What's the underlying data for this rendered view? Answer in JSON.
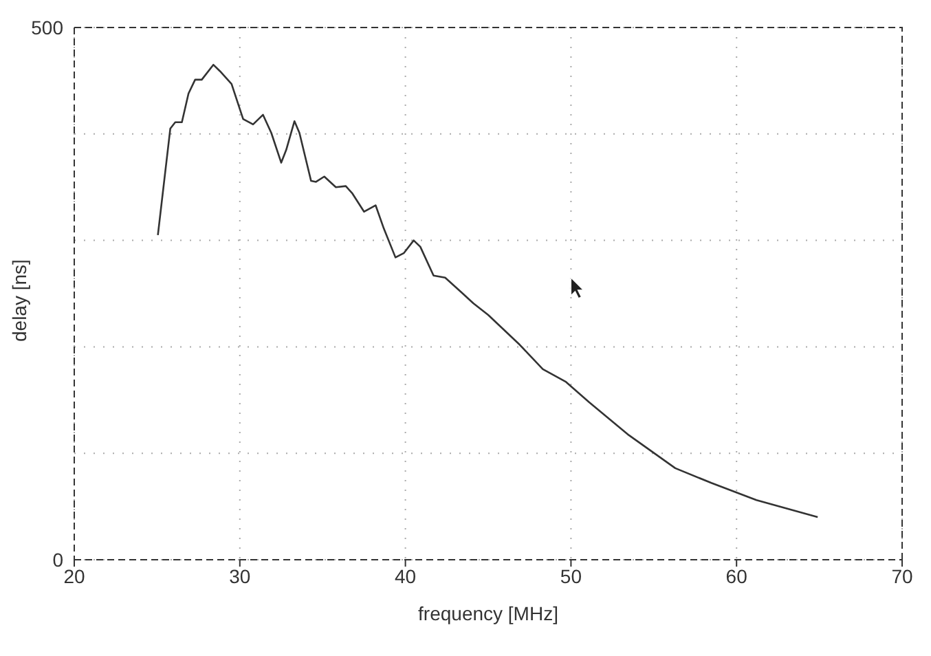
{
  "chart_data": {
    "type": "line",
    "xlabel": "frequency [MHz]",
    "ylabel": "delay [ns]",
    "xlim": [
      20,
      70
    ],
    "xticks": [
      20,
      30,
      40,
      50,
      60,
      70
    ],
    "ylim": [
      0,
      500
    ],
    "yticks": [
      0,
      {
        "value": 100,
        "label": null
      },
      {
        "value": 200,
        "label": null
      },
      {
        "value": 300,
        "label": null
      },
      {
        "value": 400,
        "label": null
      },
      500
    ],
    "grid": true,
    "marker": "none",
    "line_style": "solid",
    "series": [
      {
        "color": "#333333",
        "x": [
          25.05,
          25.8,
          26.1,
          26.5,
          26.9,
          27.3,
          27.7,
          28.4,
          28.8,
          29.5,
          30.2,
          30.8,
          31.4,
          31.9,
          32.5,
          32.8,
          33.3,
          33.6,
          34.3,
          34.6,
          35.1,
          35.8,
          36.4,
          36.8,
          37.5,
          38.2,
          38.7,
          39.4,
          39.9,
          40.5,
          40.9,
          41.7,
          42.4,
          43.4,
          44.1,
          45.0,
          46.9,
          48.3,
          49.7,
          51.1,
          53.5,
          56.3,
          58.5,
          61.2,
          64.9
        ],
        "values": [
          305,
          405,
          411,
          411,
          438,
          451,
          451,
          465,
          459,
          447,
          414,
          409,
          418,
          401,
          373,
          385,
          412,
          401,
          356,
          355,
          360,
          350,
          351,
          344,
          327,
          333,
          311,
          284,
          288,
          300,
          294,
          267,
          265,
          251,
          241,
          230,
          202,
          179,
          167,
          148,
          117,
          86,
          72,
          56,
          40
        ]
      }
    ]
  }
}
